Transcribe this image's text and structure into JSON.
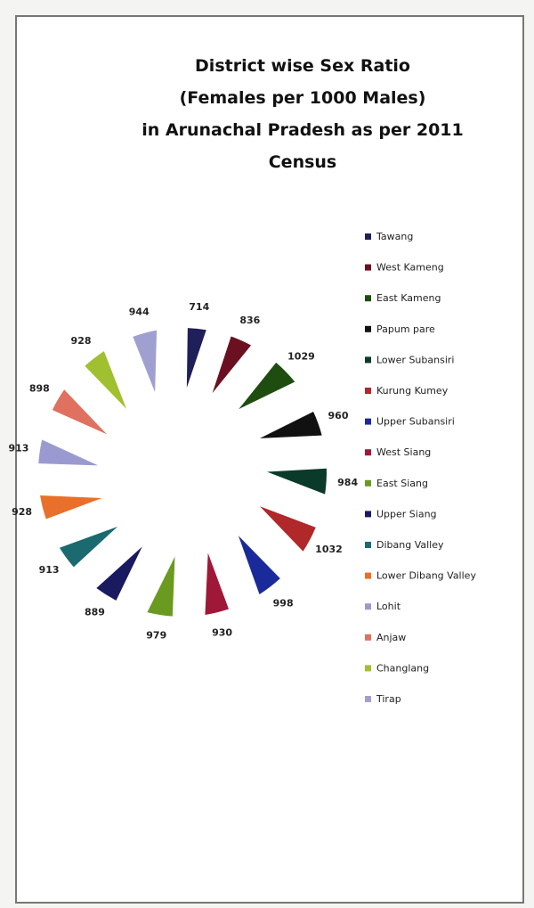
{
  "chart_data": {
    "type": "pie",
    "title": [
      "District wise Sex Ratio",
      "(Females per 1000 Males)",
      "in Arunachal Pradesh as per 2011",
      "Census"
    ],
    "categories": [
      "Tawang",
      "West Kameng",
      "East Kameng",
      "Papum pare",
      "Lower Subansiri",
      "Kurung Kumey",
      "Upper Subansiri",
      "West Siang",
      "East Siang",
      "Upper Siang",
      "Dibang Valley",
      "Lower Dibang Valley",
      "Lohit",
      "Anjaw",
      "Changlang",
      "Tirap"
    ],
    "values": [
      714,
      836,
      1029,
      960,
      984,
      1032,
      998,
      930,
      979,
      889,
      913,
      928,
      913,
      898,
      928,
      944
    ],
    "colors": [
      "#1f1f5a",
      "#6b1020",
      "#1f4d10",
      "#111111",
      "#0a3a2a",
      "#b0282a",
      "#1a2a9a",
      "#a01838",
      "#6a9a20",
      "#1a1a60",
      "#1a6a70",
      "#e8702a",
      "#9a9ad0",
      "#e07060",
      "#a0c030",
      "#a0a0d0"
    ],
    "legend": "right"
  }
}
